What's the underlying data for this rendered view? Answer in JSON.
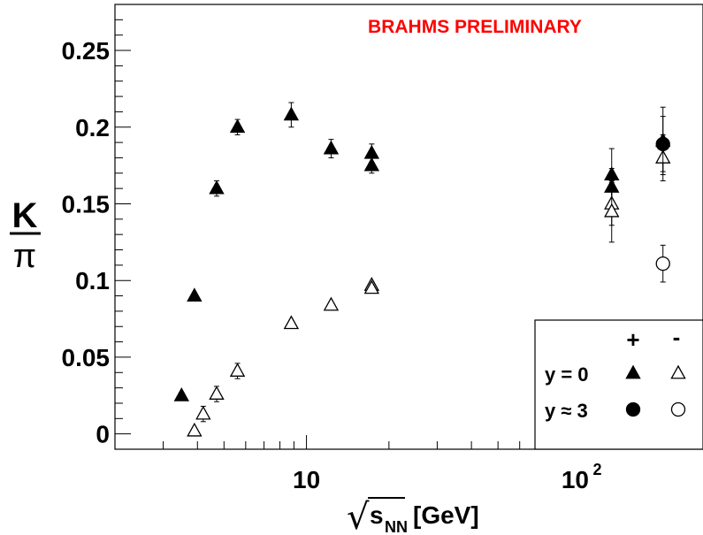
{
  "chart_data": {
    "type": "scatter",
    "title": "",
    "annotation": "BRAHMS PRELIMINARY",
    "annotation_color": "#ff0000",
    "xlabel": "√s_NN [GeV]",
    "xlabel_parts": {
      "sqrt": "√",
      "s": "s",
      "sub": "NN",
      "unit": "[GeV]"
    },
    "ylabel": {
      "numerator": "K",
      "denominator": "π"
    },
    "x_scale": "log",
    "xlim": [
      2.0,
      280.0
    ],
    "ylim": [
      -0.01,
      0.28
    ],
    "grid": false,
    "x_tick_labels": [
      {
        "value": 10,
        "text": "10"
      },
      {
        "value": 100,
        "base": "10",
        "exp": "2"
      }
    ],
    "y_ticks": [
      0,
      0.05,
      0.1,
      0.15,
      0.2,
      0.25
    ],
    "y_tick_labels": [
      "0",
      "0.05",
      "0.1",
      "0.15",
      "0.2",
      "0.25"
    ],
    "legend": {
      "position": "bottom-right",
      "col_headers": [
        "+",
        "-"
      ],
      "rows": [
        {
          "label": "y = 0",
          "plus_marker": "filled-triangle",
          "minus_marker": "open-triangle"
        },
        {
          "label": "y ≈ 3",
          "plus_marker": "filled-circle",
          "minus_marker": "open-circle"
        }
      ]
    },
    "series": [
      {
        "marker": "filled-triangle",
        "points": [
          {
            "x": 3.5,
            "y": 0.025,
            "err": 0.002
          },
          {
            "x": 3.9,
            "y": 0.09,
            "err": 0.002
          },
          {
            "x": 4.7,
            "y": 0.16,
            "err": 0.005
          },
          {
            "x": 5.6,
            "y": 0.2,
            "err": 0.005
          },
          {
            "x": 8.8,
            "y": 0.208,
            "err": 0.008
          },
          {
            "x": 12.3,
            "y": 0.186,
            "err": 0.006
          },
          {
            "x": 17.3,
            "y": 0.183,
            "err": 0.006
          },
          {
            "x": 17.3,
            "y": 0.175,
            "err": 0.005
          },
          {
            "x": 130,
            "y": 0.169,
            "err": 0.017
          },
          {
            "x": 130,
            "y": 0.161,
            "err": 0.012
          },
          {
            "x": 200,
            "y": 0.191,
            "err": 0.022
          }
        ]
      },
      {
        "marker": "open-triangle",
        "points": [
          {
            "x": 3.9,
            "y": 0.002,
            "err": 0.002
          },
          {
            "x": 4.2,
            "y": 0.013,
            "err": 0.005
          },
          {
            "x": 4.7,
            "y": 0.026,
            "err": 0.005
          },
          {
            "x": 5.6,
            "y": 0.041,
            "err": 0.005
          },
          {
            "x": 8.8,
            "y": 0.072,
            "err": 0.002
          },
          {
            "x": 12.3,
            "y": 0.084,
            "err": 0.002
          },
          {
            "x": 17.3,
            "y": 0.097,
            "err": 0.002
          },
          {
            "x": 17.3,
            "y": 0.095,
            "err": 0.002
          },
          {
            "x": 130,
            "y": 0.15,
            "err": 0.014
          },
          {
            "x": 130,
            "y": 0.145,
            "err": 0.02
          },
          {
            "x": 200,
            "y": 0.18,
            "err": 0.015
          }
        ]
      },
      {
        "marker": "filled-circle",
        "points": [
          {
            "x": 200,
            "y": 0.189,
            "err": 0.018
          }
        ]
      },
      {
        "marker": "open-circle",
        "points": [
          {
            "x": 200,
            "y": 0.111,
            "err": 0.012
          }
        ]
      }
    ]
  }
}
